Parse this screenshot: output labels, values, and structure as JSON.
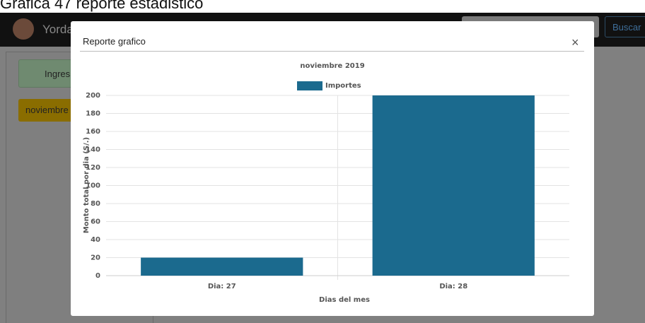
{
  "caption": "Grafica 47 reporte estadistico",
  "navbar": {
    "user": "Yorda",
    "search_button": "Buscar"
  },
  "sidebar": {
    "income_button": "Ingres",
    "month_button": "noviembre"
  },
  "modal": {
    "title": "Reporte grafico",
    "close": "×"
  },
  "chart_data": {
    "type": "bar",
    "title": "noviembre 2019",
    "categories": [
      "Dia: 27",
      "Dia: 28"
    ],
    "series": [
      {
        "name": "Importes",
        "color": "#1b6a8e",
        "values": [
          20,
          200
        ]
      }
    ],
    "x_label": "Dias del mes",
    "y_label": "Monto total por dia (S/.)",
    "ylim": [
      0,
      200
    ],
    "yticks": [
      0,
      20,
      40,
      60,
      80,
      100,
      120,
      140,
      160,
      180,
      200
    ],
    "grid": true,
    "legend": "top"
  }
}
